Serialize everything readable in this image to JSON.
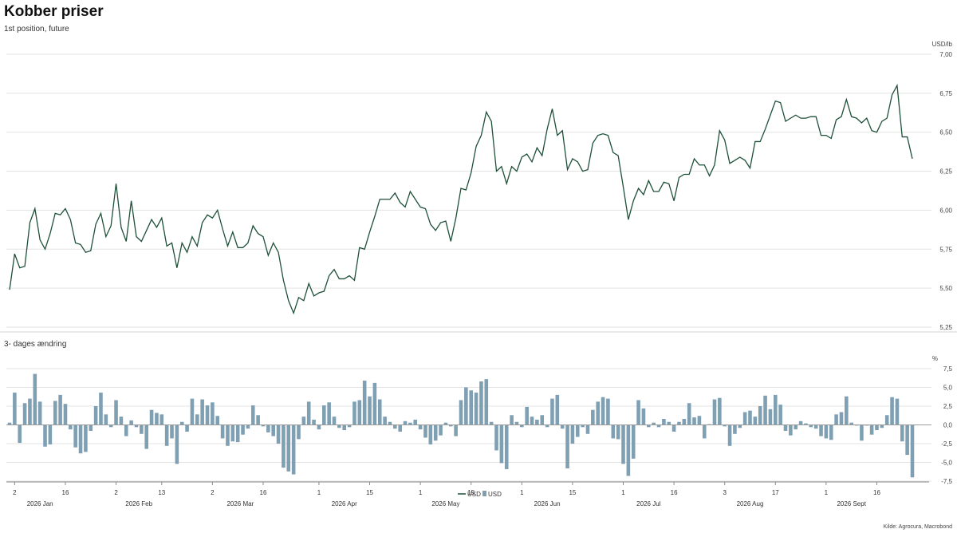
{
  "header": {
    "title": "Kobber priser",
    "subtitle": "1st position, future"
  },
  "source": "Kilde: Agrocura, Macrobond",
  "colors": {
    "line": "#1e5038",
    "bar": "#7f9fb3",
    "grid": "#e3e3e3",
    "axis": "#8a8a8a"
  },
  "chart_data": [
    {
      "type": "line",
      "unit": "USD/lb",
      "ylim": [
        5.25,
        7.0
      ],
      "yticks": [
        "5,25",
        "5,50",
        "5,75",
        "6,00",
        "6,25",
        "6,50",
        "6,75",
        "7,00"
      ],
      "grid": true,
      "series": [
        {
          "name": "USD",
          "values": [
            5.49,
            5.72,
            5.63,
            5.64,
            5.92,
            6.01,
            5.81,
            5.75,
            5.85,
            5.98,
            5.97,
            6.01,
            5.94,
            5.79,
            5.78,
            5.73,
            5.74,
            5.91,
            5.98,
            5.83,
            5.9,
            6.17,
            5.89,
            5.8,
            6.06,
            5.83,
            5.8,
            5.87,
            5.94,
            5.89,
            5.95,
            5.77,
            5.79,
            5.63,
            5.79,
            5.73,
            5.83,
            5.77,
            5.92,
            5.97,
            5.95,
            6.0,
            5.88,
            5.77,
            5.86,
            5.76,
            5.76,
            5.79,
            5.9,
            5.85,
            5.83,
            5.71,
            5.79,
            5.73,
            5.55,
            5.42,
            5.34,
            5.44,
            5.42,
            5.53,
            5.45,
            5.47,
            5.48,
            5.58,
            5.62,
            5.56,
            5.56,
            5.58,
            5.55,
            5.76,
            5.75,
            5.86,
            5.96,
            6.07,
            6.07,
            6.07,
            6.11,
            6.05,
            6.02,
            6.12,
            6.07,
            6.02,
            6.01,
            5.91,
            5.87,
            5.92,
            5.93,
            5.8,
            5.95,
            6.14,
            6.13,
            6.24,
            6.41,
            6.48,
            6.63,
            6.57,
            6.25,
            6.28,
            6.17,
            6.28,
            6.25,
            6.34,
            6.36,
            6.31,
            6.4,
            6.35,
            6.52,
            6.65,
            6.48,
            6.51,
            6.26,
            6.33,
            6.31,
            6.25,
            6.26,
            6.43,
            6.48,
            6.49,
            6.48,
            6.37,
            6.35,
            6.15,
            5.94,
            6.06,
            6.14,
            6.1,
            6.19,
            6.12,
            6.12,
            6.18,
            6.17,
            6.06,
            6.21,
            6.23,
            6.23,
            6.33,
            6.29,
            6.29,
            6.22,
            6.29,
            6.51,
            6.45,
            6.3,
            6.32,
            6.34,
            6.32,
            6.27,
            6.44,
            6.44,
            6.52,
            6.61,
            6.7,
            6.69,
            6.57,
            6.59,
            6.61,
            6.59,
            6.59,
            6.6,
            6.6,
            6.48,
            6.48,
            6.46,
            6.58,
            6.6,
            6.71,
            6.6,
            6.59,
            6.56,
            6.59,
            6.51,
            6.5,
            6.57,
            6.59,
            6.74,
            6.8,
            6.47,
            6.47,
            6.33
          ]
        }
      ]
    },
    {
      "type": "bar",
      "title": "3- dages ændring",
      "unit": "%",
      "ylim": [
        -7.5,
        7.5
      ],
      "yticks": [
        "-7,5",
        "-5,0",
        "-2,5",
        "0,0",
        "2,5",
        "5,0",
        "7,5"
      ],
      "grid": true,
      "series": [
        {
          "name": "USD",
          "values": [
            0.3,
            4.3,
            -2.4,
            2.9,
            3.5,
            6.8,
            3.1,
            -2.9,
            -2.6,
            3.2,
            4.0,
            2.8,
            -0.6,
            -3.0,
            -3.8,
            -3.6,
            -0.8,
            2.5,
            4.3,
            1.4,
            -0.3,
            3.3,
            1.1,
            -1.5,
            0.6,
            -0.3,
            -1.2,
            -3.2,
            2.0,
            1.6,
            1.4,
            -2.8,
            -1.8,
            -5.2,
            0.4,
            -0.9,
            3.5,
            1.4,
            3.4,
            2.6,
            3.0,
            1.2,
            -1.8,
            -2.8,
            -2.2,
            -2.3,
            -1.3,
            -0.5,
            2.6,
            1.3,
            -0.2,
            -1.0,
            -1.5,
            -2.5,
            -5.7,
            -6.2,
            -6.6,
            -1.9,
            1.1,
            3.1,
            0.7,
            -0.6,
            2.6,
            3.0,
            1.1,
            -0.4,
            -0.7,
            -0.3,
            3.1,
            3.3,
            5.9,
            3.8,
            5.6,
            3.4,
            1.1,
            0.4,
            -0.5,
            -0.9,
            0.5,
            0.3,
            0.7,
            -0.6,
            -1.7,
            -2.6,
            -2.1,
            -1.4,
            0.3,
            -0.2,
            -1.5,
            3.3,
            5.0,
            4.6,
            4.3,
            5.8,
            6.1,
            0.4,
            -3.4,
            -5.1,
            -5.9,
            1.3,
            0.4,
            -0.3,
            2.4,
            1.1,
            0.7,
            1.3,
            -0.3,
            3.5,
            4.0,
            -0.5,
            -5.8,
            -2.5,
            -1.6,
            -0.3,
            -1.2,
            2.0,
            3.1,
            3.7,
            3.5,
            -1.8,
            -1.9,
            -5.2,
            -6.8,
            -4.5,
            3.3,
            2.2,
            -0.3,
            0.3,
            -0.3,
            0.8,
            0.4,
            -0.9,
            0.4,
            0.8,
            2.9,
            1.0,
            1.2,
            -1.8,
            0.1,
            3.4,
            3.6,
            -0.2,
            -2.8,
            -1.2,
            -0.4,
            1.7,
            1.9,
            1.1,
            2.5,
            3.9,
            2.1,
            4.0,
            2.7,
            -0.8,
            -1.4,
            -0.6,
            0.5,
            0.2,
            -0.3,
            -0.5,
            -1.5,
            -1.8,
            -2.0,
            1.4,
            1.7,
            3.8,
            0.3,
            -0.1,
            -2.1,
            -0.1,
            -1.3,
            -0.7,
            -0.4,
            1.3,
            3.7,
            3.5,
            -2.2,
            -4.0,
            -7.0
          ]
        }
      ]
    }
  ],
  "x_axis": {
    "day_ticks": [
      {
        "label": "2",
        "index": 1
      },
      {
        "label": "16",
        "index": 11
      },
      {
        "label": "2",
        "index": 21
      },
      {
        "label": "13",
        "index": 30
      },
      {
        "label": "2",
        "index": 40
      },
      {
        "label": "16",
        "index": 50
      },
      {
        "label": "1",
        "index": 61
      },
      {
        "label": "15",
        "index": 71
      },
      {
        "label": "1",
        "index": 81
      },
      {
        "label": "15",
        "index": 91
      },
      {
        "label": "1",
        "index": 101
      },
      {
        "label": "15",
        "index": 111
      },
      {
        "label": "1",
        "index": 121
      },
      {
        "label": "16",
        "index": 131
      },
      {
        "label": "3",
        "index": 141
      },
      {
        "label": "17",
        "index": 151
      },
      {
        "label": "1",
        "index": 161
      },
      {
        "label": "16",
        "index": 171
      }
    ],
    "month_labels": [
      {
        "label": "2026 Jan",
        "index": 6
      },
      {
        "label": "2026 Feb",
        "index": 25.5
      },
      {
        "label": "2026 Mar",
        "index": 45.5
      },
      {
        "label": "2026 Apr",
        "index": 66
      },
      {
        "label": "2026 May",
        "index": 86
      },
      {
        "label": "2026 Jun",
        "index": 106
      },
      {
        "label": "2026 Jul",
        "index": 126
      },
      {
        "label": "2026 Aug",
        "index": 146
      },
      {
        "label": "2026 Sept",
        "index": 166
      }
    ]
  },
  "legend": {
    "placement": "bottom-center",
    "items": [
      {
        "label": "USD",
        "kind": "line"
      },
      {
        "label": "USD",
        "kind": "bar"
      }
    ]
  }
}
